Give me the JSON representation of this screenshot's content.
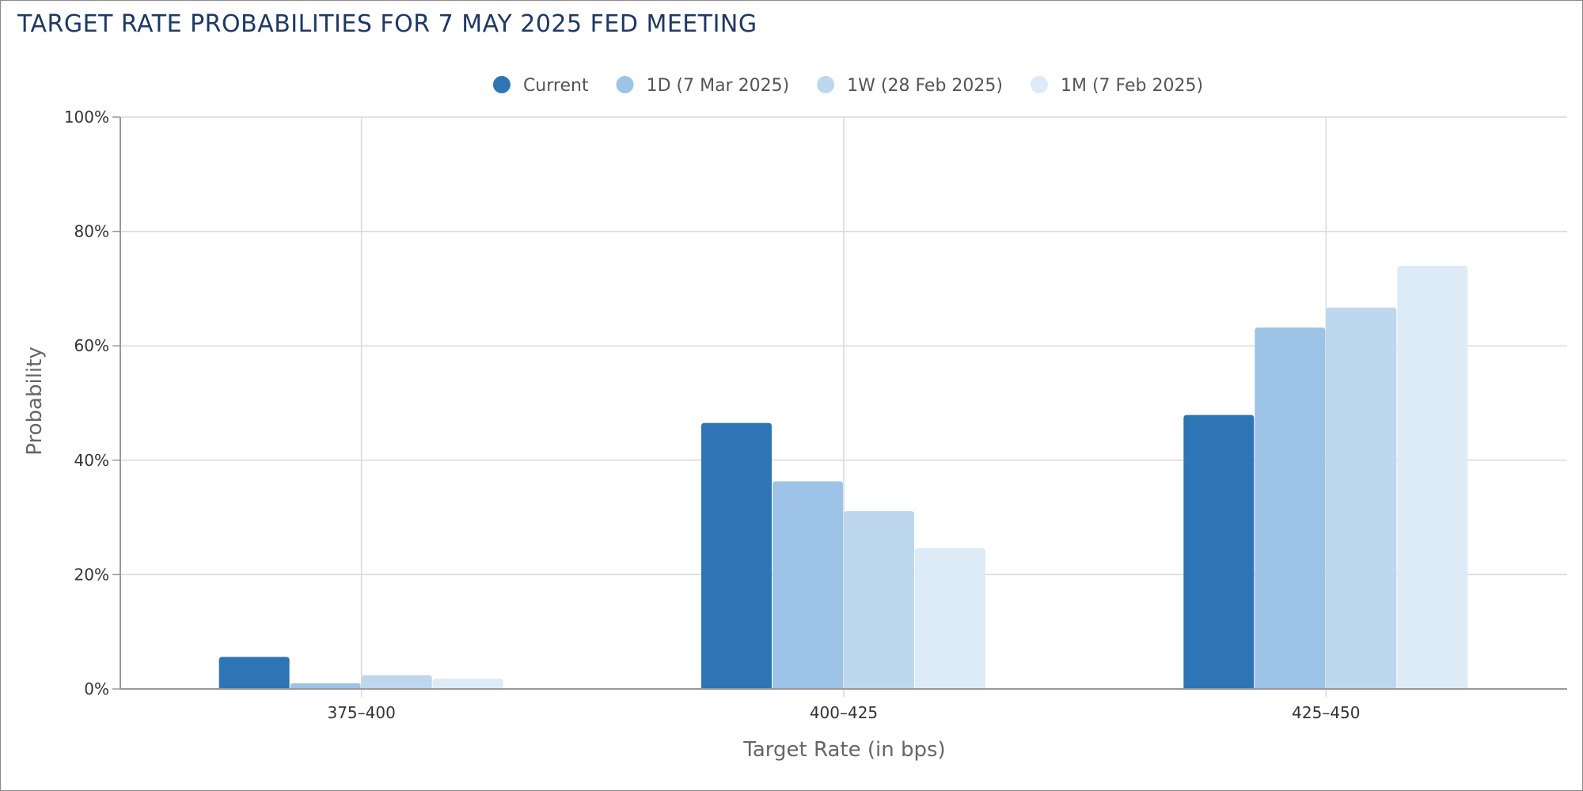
{
  "chart_data": {
    "type": "bar",
    "title": "TARGET RATE PROBABILITIES FOR 7 MAY 2025 FED MEETING",
    "xlabel": "Target Rate (in bps)",
    "ylabel": "Probability",
    "categories": [
      "375-400",
      "400-425",
      "425-450"
    ],
    "series": [
      {
        "name": "Current",
        "color": "#2e75b6",
        "values": [
          5.6,
          46.5,
          47.9
        ]
      },
      {
        "name": "1D (7 Mar 2025)",
        "color": "#9dc3e6",
        "values": [
          1.0,
          36.3,
          63.2
        ]
      },
      {
        "name": "1W (28 Feb 2025)",
        "color": "#bdd7ee",
        "values": [
          2.4,
          31.1,
          66.7
        ]
      },
      {
        "name": "1M (7 Feb 2025)",
        "color": "#ddebf7",
        "values": [
          1.8,
          24.6,
          74.0
        ]
      }
    ],
    "ylim": [
      0,
      100
    ],
    "yticks": [
      "0%",
      "20%",
      "40%",
      "60%",
      "80%",
      "100%"
    ],
    "grid": true,
    "legend_position": "top-center"
  }
}
